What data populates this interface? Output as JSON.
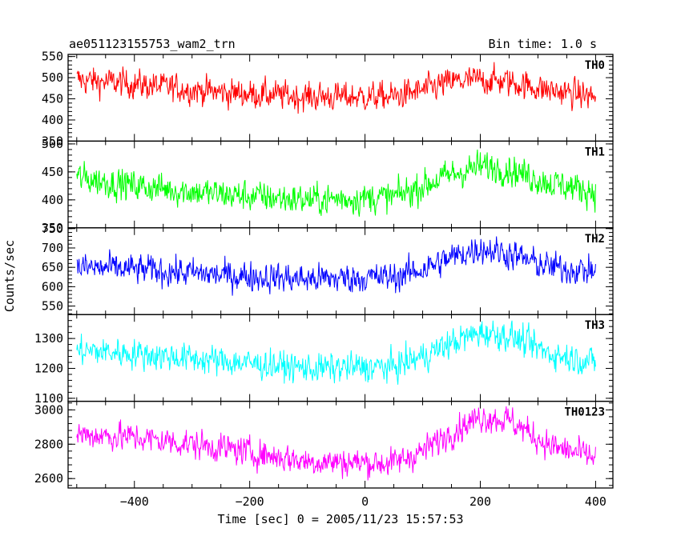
{
  "header": {
    "title": "ae051123155753_wam2_trn",
    "bin_time": "Bin time: 1.0 s"
  },
  "chart_data": {
    "type": "line",
    "title": "ae051123155753_wam2_trn",
    "subtitle": "Bin time: 1.0 s",
    "xlabel": "Time [sec] 0 = 2005/11/23 15:57:53",
    "ylabel": "Counts/sec",
    "xlim": [
      -515,
      430
    ],
    "x_ticks": [
      -400,
      -200,
      0,
      200,
      400
    ],
    "x_tick_labels": [
      "−400",
      "−200",
      "0",
      "200",
      "400"
    ],
    "x_start": -500,
    "x_end": 400,
    "grid": false,
    "panels": [
      {
        "name": "TH0",
        "color": "#ff0000",
        "ylim": [
          350,
          555
        ],
        "y_ticks": [
          350,
          400,
          450,
          500,
          550
        ],
        "y_tick_labels": [
          "350",
          "400",
          "450",
          "500",
          "550"
        ],
        "trend": {
          "x": [
            -500,
            -400,
            -250,
            -100,
            50,
            100,
            150,
            200,
            250,
            320,
            400
          ],
          "y": [
            495,
            485,
            465,
            455,
            455,
            470,
            490,
            495,
            490,
            470,
            455
          ]
        },
        "noise": 22
      },
      {
        "name": "TH1",
        "color": "#00ff00",
        "ylim": [
          350,
          505
        ],
        "y_ticks": [
          350,
          400,
          450,
          500
        ],
        "y_tick_labels": [
          "350",
          "400",
          "450",
          "500"
        ],
        "trend": {
          "x": [
            -500,
            -400,
            -250,
            -100,
            50,
            100,
            150,
            200,
            250,
            320,
            400
          ],
          "y": [
            440,
            425,
            410,
            400,
            405,
            425,
            445,
            460,
            455,
            430,
            415
          ]
        },
        "noise": 18
      },
      {
        "name": "TH2",
        "color": "#0000ff",
        "ylim": [
          528,
          752
        ],
        "y_ticks": [
          550,
          600,
          650,
          700,
          750
        ],
        "y_tick_labels": [
          "550",
          "600",
          "650",
          "700",
          "750"
        ],
        "trend": {
          "x": [
            -500,
            -400,
            -250,
            -100,
            50,
            100,
            150,
            200,
            250,
            320,
            400
          ],
          "y": [
            650,
            645,
            630,
            620,
            625,
            645,
            675,
            700,
            685,
            650,
            640
          ]
        },
        "noise": 25
      },
      {
        "name": "TH3",
        "color": "#00ffff",
        "ylim": [
          1090,
          1380
        ],
        "y_ticks": [
          1100,
          1200,
          1300
        ],
        "y_tick_labels": [
          "1100",
          "1200",
          "1300"
        ],
        "trend": {
          "x": [
            -500,
            -400,
            -250,
            -100,
            50,
            100,
            150,
            200,
            250,
            320,
            400
          ],
          "y": [
            1260,
            1250,
            1225,
            1200,
            1205,
            1240,
            1285,
            1320,
            1310,
            1250,
            1220
          ]
        },
        "noise": 32
      },
      {
        "name": "TH0123",
        "color": "#ff00ff",
        "ylim": [
          2545,
          3050
        ],
        "y_ticks": [
          2600,
          2800,
          3000
        ],
        "y_tick_labels": [
          "2600",
          "2800",
          "3000"
        ],
        "trend": {
          "x": [
            -500,
            -400,
            -250,
            -100,
            50,
            100,
            150,
            200,
            250,
            320,
            400
          ],
          "y": [
            2860,
            2840,
            2780,
            2700,
            2690,
            2760,
            2870,
            2960,
            2940,
            2790,
            2720
          ]
        },
        "noise": 55
      }
    ]
  }
}
